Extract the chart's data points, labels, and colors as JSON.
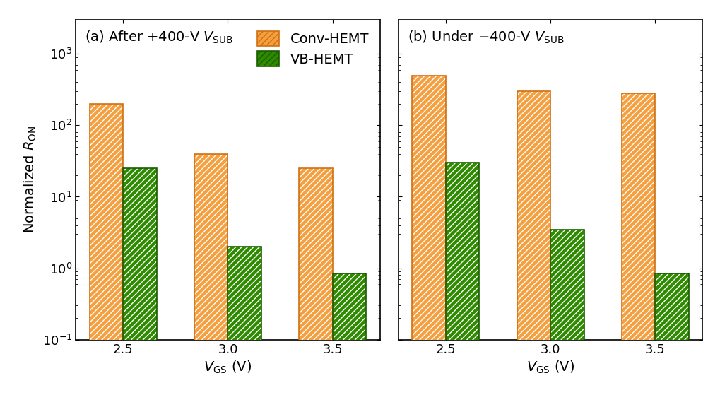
{
  "panel_a": {
    "categories": [
      2.5,
      3.0,
      3.5
    ],
    "conv": [
      200,
      40,
      25
    ],
    "vb": [
      25,
      2.0,
      0.85
    ]
  },
  "panel_b": {
    "categories": [
      2.5,
      3.0,
      3.5
    ],
    "conv": [
      500,
      300,
      280
    ],
    "vb": [
      30,
      3.5,
      0.85
    ]
  },
  "ylim": [
    0.1,
    3000
  ],
  "conv_color": "#F5A040",
  "vb_color": "#2E8B00",
  "conv_edge": "#D07010",
  "vb_edge": "#1A5C00",
  "legend_labels": [
    "Conv-HEMT",
    "VB-HEMT"
  ],
  "bar_width": 0.32,
  "hatch": "////",
  "title_fontsize": 14,
  "label_fontsize": 14,
  "tick_fontsize": 13
}
